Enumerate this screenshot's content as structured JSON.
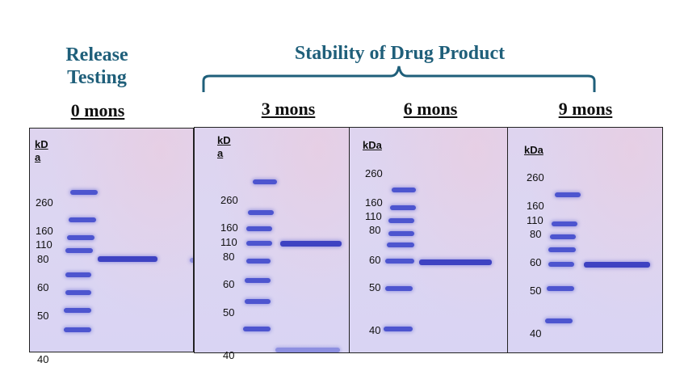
{
  "headers": {
    "release": "Release Testing",
    "stability": "Stability of Drug Product"
  },
  "time_points": [
    "0 mons",
    "3 mons",
    "6 mons",
    "9 mons"
  ],
  "units": {
    "p0": "kD a",
    "p1": "kD a",
    "p2": "kDa",
    "p3": "kDa"
  },
  "markers": {
    "p0": [
      "260",
      "160",
      "110",
      "80",
      "60",
      "50",
      "40"
    ],
    "p1": [
      "260",
      "160",
      "110",
      "80",
      "60",
      "50",
      "40"
    ],
    "p2": [
      "260",
      "160",
      "110",
      "80",
      "60",
      "50",
      "40"
    ],
    "p3": [
      "260",
      "160",
      "110",
      "80",
      "60",
      "50",
      "40"
    ]
  },
  "colors": {
    "header": "#1f5f7a",
    "gel_background": "#dcd6f2",
    "band": "#4d55cf"
  }
}
